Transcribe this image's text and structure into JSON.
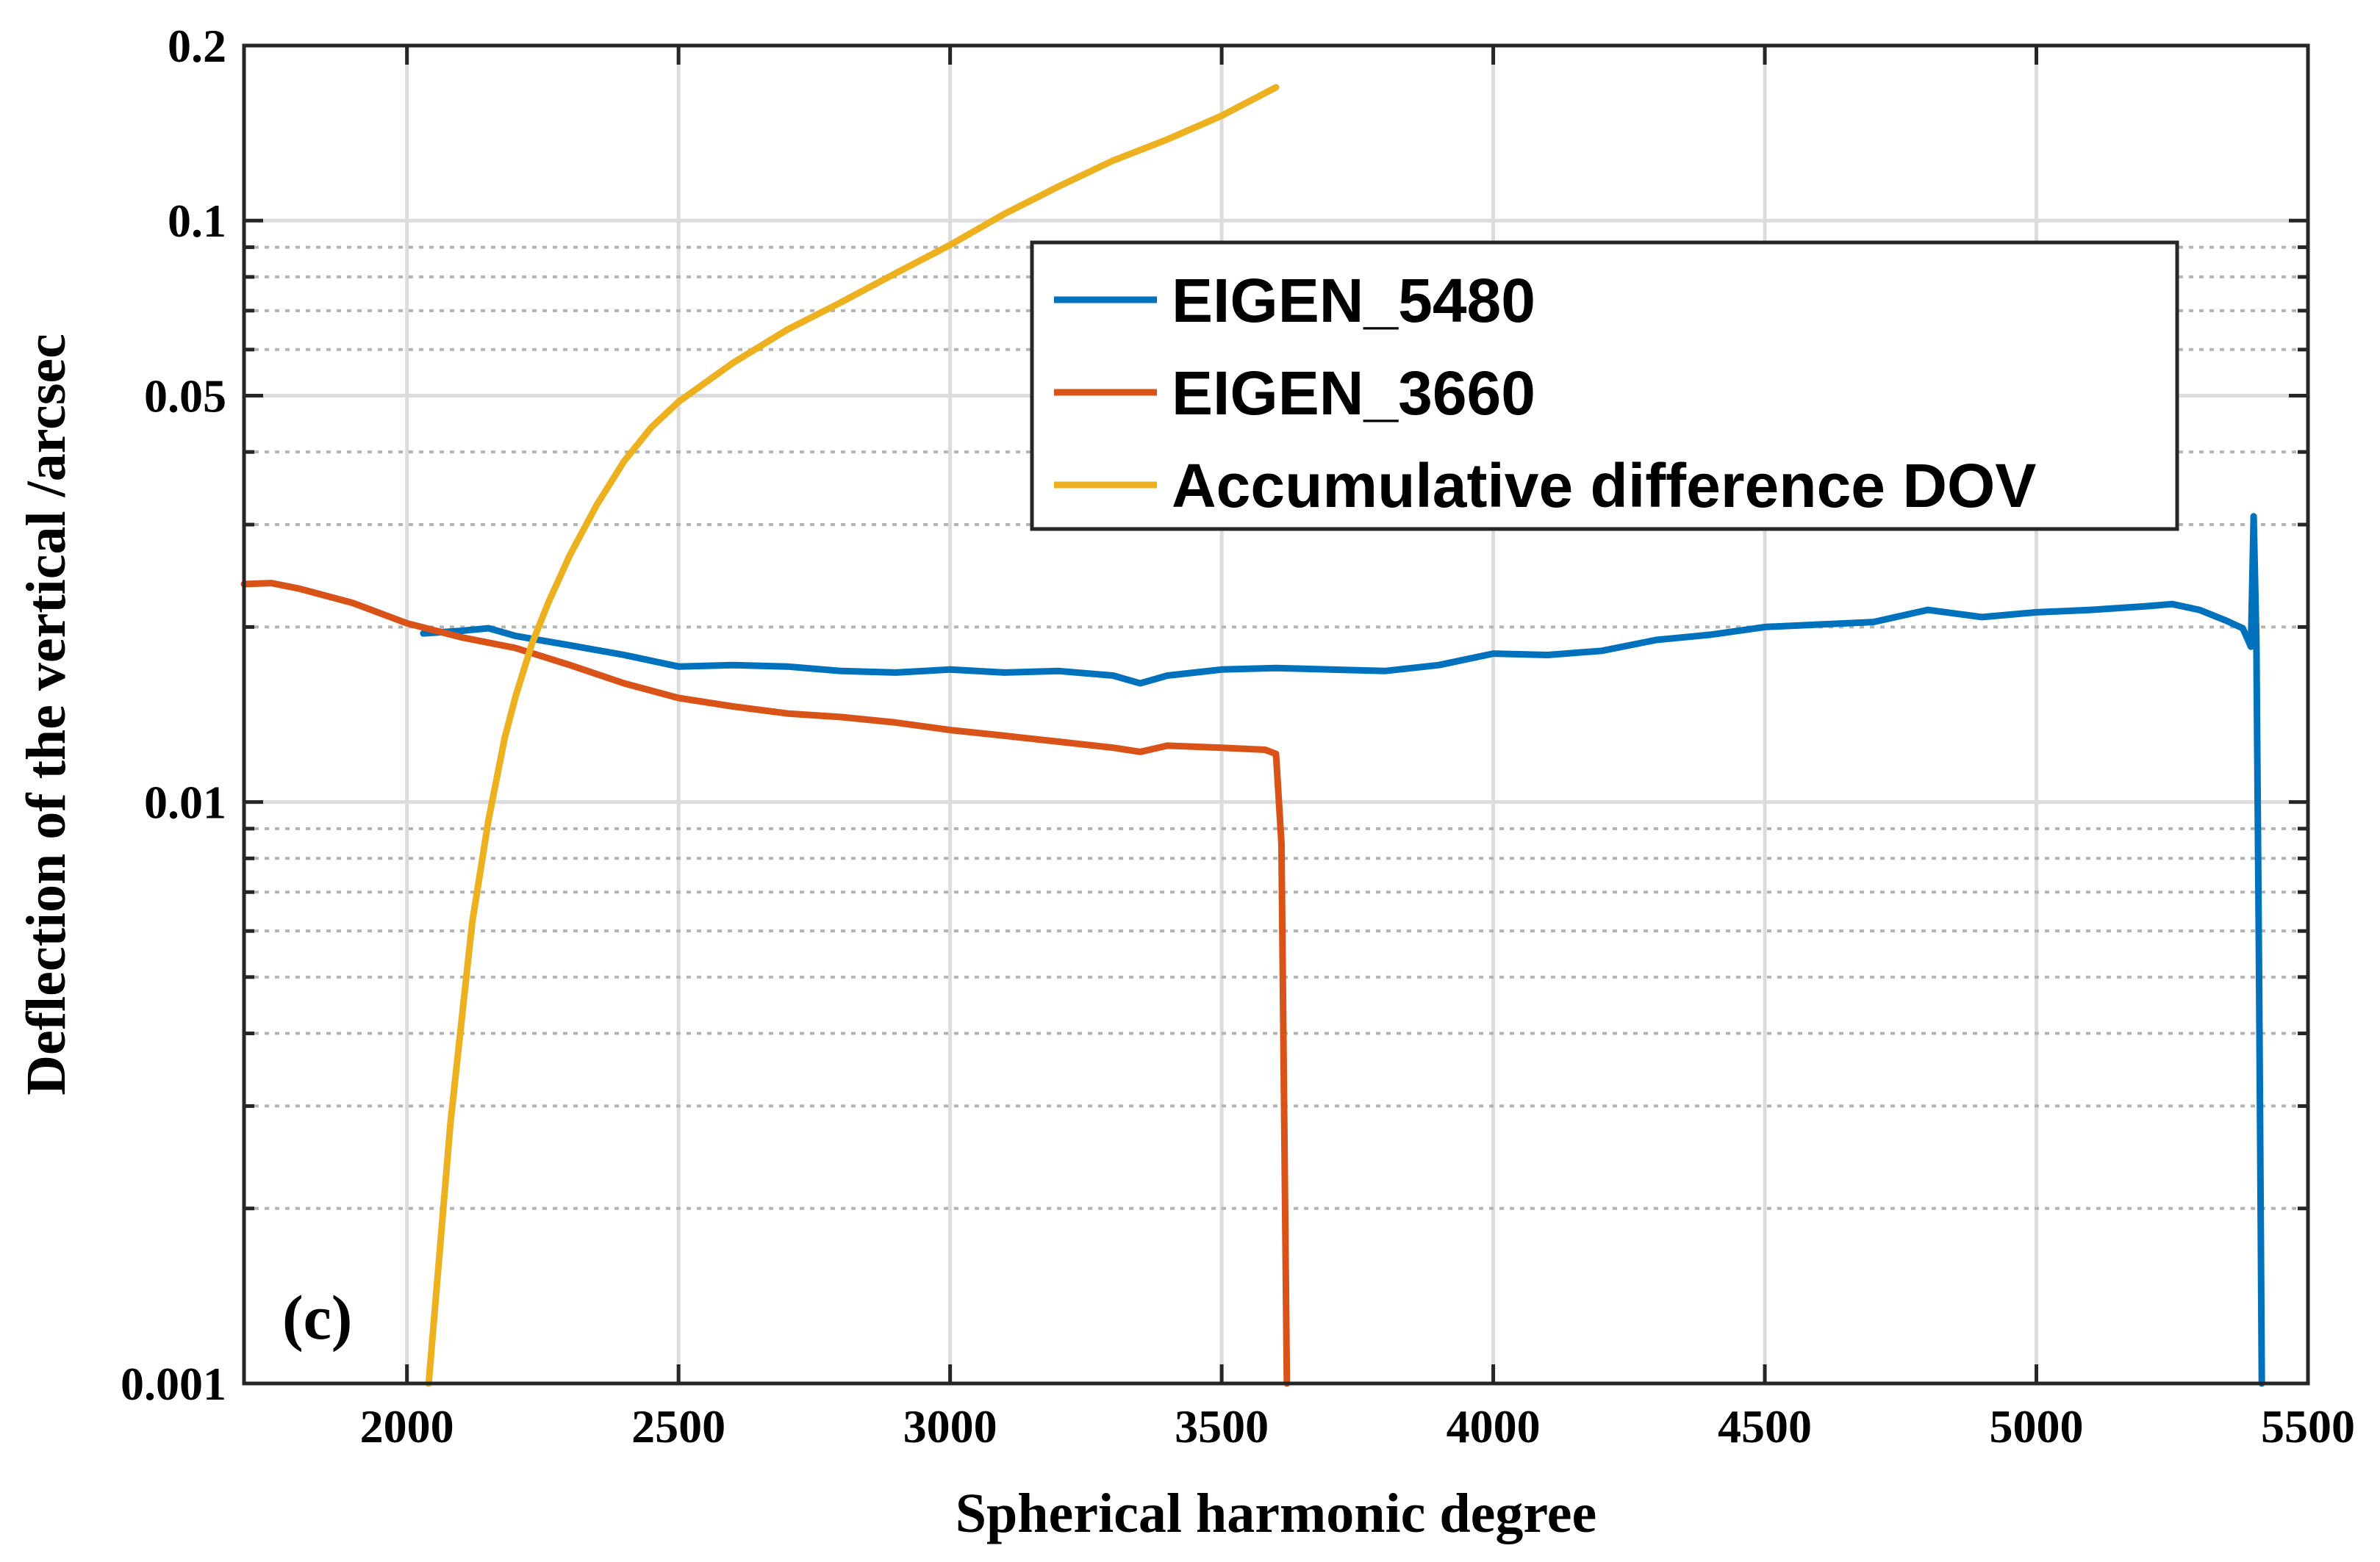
{
  "chart_data": {
    "type": "line",
    "xlabel": "Spherical harmonic degree",
    "ylabel": "Deflection of the vertical /arcsec",
    "yscale": "log",
    "xlim": [
      1700,
      5500
    ],
    "ylim": [
      0.001,
      0.2
    ],
    "xticks": [
      2000,
      2500,
      3000,
      3500,
      4000,
      4500,
      5000,
      5500
    ],
    "xtick_labels": [
      "2000",
      "2500",
      "3000",
      "3500",
      "4000",
      "4500",
      "5000",
      "5500"
    ],
    "yticks": [
      0.001,
      0.01,
      0.05,
      0.1,
      0.2
    ],
    "ytick_labels": [
      "0.001",
      "0.01",
      "0.05",
      "0.1",
      "0.2"
    ],
    "grid": true,
    "legend_position": "top-right",
    "annotation": "(c)",
    "series": [
      {
        "name": "EIGEN_5480",
        "color": "#0072BD",
        "x": [
          2030,
          2100,
          2150,
          2200,
          2300,
          2400,
          2500,
          2600,
          2700,
          2800,
          2900,
          3000,
          3100,
          3200,
          3300,
          3350,
          3400,
          3500,
          3600,
          3700,
          3800,
          3900,
          4000,
          4100,
          4200,
          4300,
          4400,
          4500,
          4600,
          4700,
          4800,
          4900,
          5000,
          5100,
          5200,
          5250,
          5300,
          5350,
          5380,
          5395,
          5400,
          5405,
          5410,
          5415
        ],
        "values": [
          0.0195,
          0.0197,
          0.0199,
          0.0193,
          0.0186,
          0.0179,
          0.0171,
          0.0172,
          0.0171,
          0.0168,
          0.0167,
          0.0169,
          0.0167,
          0.0168,
          0.0165,
          0.016,
          0.0165,
          0.0169,
          0.017,
          0.0169,
          0.0168,
          0.0172,
          0.018,
          0.0179,
          0.0182,
          0.019,
          0.0194,
          0.02,
          0.0202,
          0.0204,
          0.0214,
          0.0208,
          0.0212,
          0.0214,
          0.0217,
          0.0219,
          0.0214,
          0.0205,
          0.0199,
          0.0185,
          0.031,
          0.019,
          0.005,
          0.001
        ]
      },
      {
        "name": "EIGEN_3660",
        "color": "#D95319",
        "x": [
          1700,
          1750,
          1800,
          1900,
          2000,
          2100,
          2200,
          2300,
          2400,
          2500,
          2600,
          2700,
          2800,
          2900,
          3000,
          3100,
          3200,
          3300,
          3350,
          3400,
          3500,
          3580,
          3600,
          3610,
          3620
        ],
        "values": [
          0.0237,
          0.0238,
          0.0233,
          0.022,
          0.0203,
          0.0192,
          0.0184,
          0.0172,
          0.016,
          0.0151,
          0.0146,
          0.0142,
          0.014,
          0.0137,
          0.0133,
          0.013,
          0.0127,
          0.0124,
          0.0122,
          0.0125,
          0.0124,
          0.0123,
          0.0121,
          0.0085,
          0.001
        ]
      },
      {
        "name": "Accumulative difference DOV",
        "color": "#EDB120",
        "x": [
          2040,
          2080,
          2120,
          2150,
          2180,
          2200,
          2230,
          2260,
          2300,
          2350,
          2400,
          2450,
          2500,
          2600,
          2700,
          2800,
          2900,
          3000,
          3100,
          3200,
          3300,
          3400,
          3500,
          3600
        ],
        "values": [
          0.001,
          0.0028,
          0.0062,
          0.0093,
          0.0129,
          0.0152,
          0.0187,
          0.022,
          0.0266,
          0.0325,
          0.0386,
          0.0441,
          0.0488,
          0.0569,
          0.0649,
          0.0724,
          0.0812,
          0.0908,
          0.1027,
          0.1145,
          0.1268,
          0.1379,
          0.1515,
          0.1695
        ]
      }
    ]
  }
}
